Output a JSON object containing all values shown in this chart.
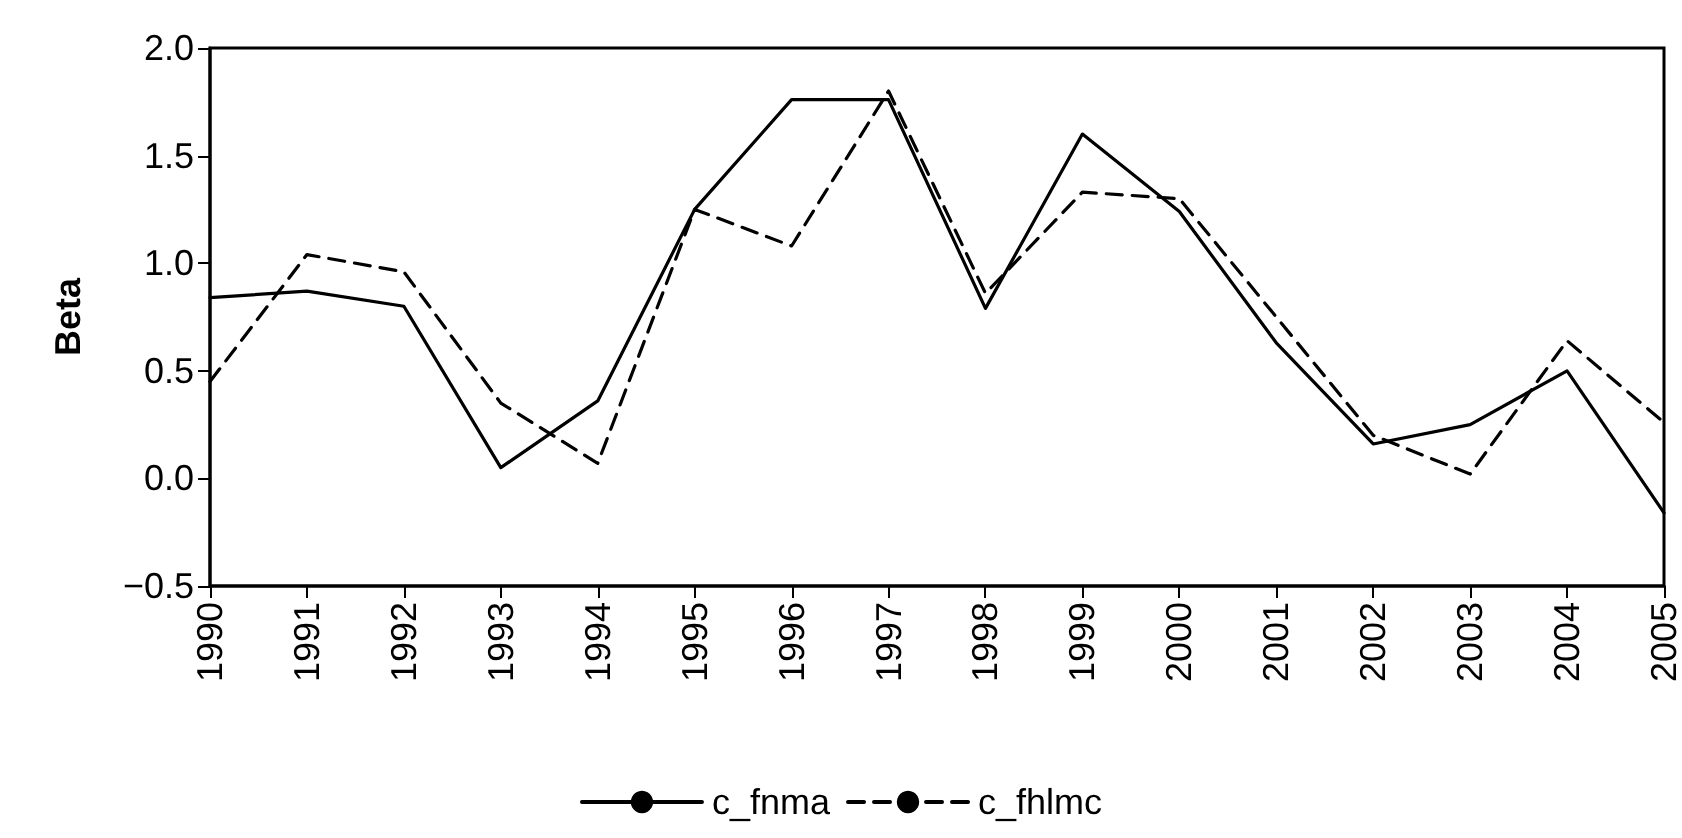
{
  "chart_data": {
    "type": "line",
    "ylabel": "Beta",
    "categories": [
      "1990",
      "1991",
      "1992",
      "1993",
      "1994",
      "1995",
      "1996",
      "1997",
      "1998",
      "1999",
      "2000",
      "2001",
      "2002",
      "2003",
      "2004",
      "2005"
    ],
    "series": [
      {
        "name": "c_fnma",
        "color": "#000000",
        "line_style": "solid",
        "values": [
          0.84,
          0.87,
          0.8,
          0.05,
          0.36,
          1.25,
          1.76,
          1.76,
          0.79,
          1.6,
          1.24,
          0.63,
          0.16,
          0.25,
          0.5,
          -0.16
        ]
      },
      {
        "name": "c_fhlmc",
        "color": "#000000",
        "line_style": "dashed",
        "values": [
          0.45,
          1.04,
          0.96,
          0.35,
          0.07,
          1.25,
          1.08,
          1.8,
          0.86,
          1.33,
          1.3,
          0.75,
          0.2,
          0.02,
          0.64,
          0.26
        ]
      }
    ],
    "ylim": [
      -0.5,
      2.0
    ],
    "yticks": [
      {
        "value": -0.5,
        "label": "−0.5"
      },
      {
        "value": 0,
        "label": "0.0"
      },
      0.5,
      {
        "value": 1,
        "label": "1.0"
      },
      1.5,
      {
        "value": 2,
        "label": "2.0"
      }
    ],
    "grid": false,
    "legend": "bottom",
    "marker": "none"
  }
}
